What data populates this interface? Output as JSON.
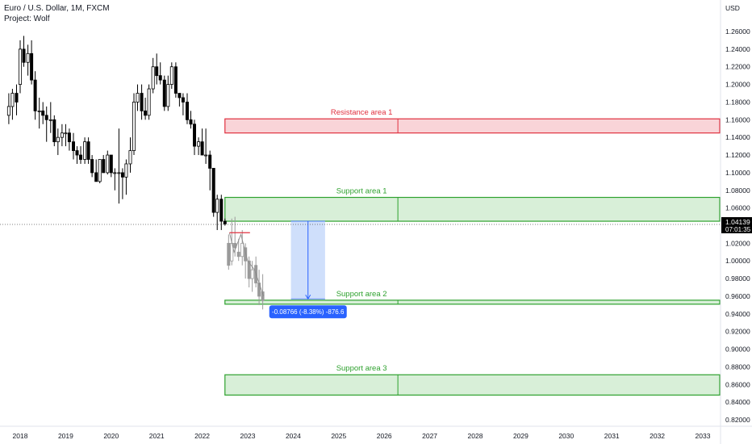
{
  "header": {
    "title": "Euro / U.S. Dollar, 1M, FXCM",
    "project": "Project: Wolf"
  },
  "chart_data": {
    "type": "candlestick",
    "currency_label": "USD",
    "ylim": [
      0.81,
      1.285
    ],
    "y_ticks": [
      0.82,
      0.84,
      0.86,
      0.88,
      0.9,
      0.92,
      0.94,
      0.96,
      0.98,
      1.0,
      1.02,
      1.04,
      1.06,
      1.08,
      1.1,
      1.12,
      1.14,
      1.16,
      1.18,
      1.2,
      1.22,
      1.24,
      1.26
    ],
    "y_tick_labels": [
      "0.82000",
      "0.84000",
      "0.86000",
      "0.88000",
      "0.90000",
      "0.92000",
      "0.94000",
      "0.96000",
      "0.98000",
      "1.00000",
      "1.02000",
      "1.04000",
      "1.06000",
      "1.08000",
      "1.10000",
      "1.12000",
      "1.14000",
      "1.16000",
      "1.18000",
      "1.20000",
      "1.22000",
      "1.24000",
      "1.26000"
    ],
    "x_labels": [
      "2018",
      "2019",
      "2020",
      "2021",
      "2022",
      "2023",
      "2024",
      "2025",
      "2026",
      "2027",
      "2028",
      "2029",
      "2030",
      "2031",
      "2032",
      "2033"
    ],
    "xlim": [
      2017.85,
      2033.55
    ],
    "current_price": "1.04139",
    "current_price_value": 1.04139,
    "countdown": "07:01:35",
    "zones": [
      {
        "label": "Resistance area 1",
        "top": 1.161,
        "bottom": 1.145,
        "start": 2022.5,
        "kind": "resistance"
      },
      {
        "label": "Support area 1",
        "top": 1.072,
        "bottom": 1.045,
        "start": 2022.5,
        "kind": "support"
      },
      {
        "label": "Support area 2",
        "top": 0.9555,
        "bottom": 0.951,
        "start": 2022.5,
        "kind": "support"
      },
      {
        "label": "Support area 3",
        "top": 0.871,
        "bottom": 0.848,
        "start": 2022.5,
        "kind": "support"
      }
    ],
    "measure": {
      "label": "-0.08766 (-8.38%) -876.6",
      "from": 1.045,
      "to": 0.957,
      "start": 2023.95,
      "end": 2024.7
    },
    "colors": {
      "up": "#ffffff",
      "down": "#000000",
      "resistance_fill": "#f9d4d8",
      "resistance_line": "#e0303f",
      "resistance_text": "#e0303f",
      "support_fill": "#d8efd8",
      "support_line": "#2ea12e",
      "support_text": "#2ea12e",
      "measure_fill": "#cfdffb",
      "measure_line": "#2962ff",
      "price_label_bg": "#000000"
    },
    "candles": [
      {
        "t": 2017.75,
        "o": 1.165,
        "h": 1.19,
        "l": 1.155,
        "c": 1.175
      },
      {
        "t": 2017.83,
        "o": 1.175,
        "h": 1.195,
        "l": 1.16,
        "c": 1.19
      },
      {
        "t": 2017.92,
        "o": 1.19,
        "h": 1.2,
        "l": 1.165,
        "c": 1.18
      },
      {
        "t": 2018.0,
        "o": 1.2,
        "h": 1.25,
        "l": 1.19,
        "c": 1.24
      },
      {
        "t": 2018.08,
        "o": 1.24,
        "h": 1.255,
        "l": 1.22,
        "c": 1.225
      },
      {
        "t": 2018.17,
        "o": 1.225,
        "h": 1.245,
        "l": 1.21,
        "c": 1.235
      },
      {
        "t": 2018.25,
        "o": 1.235,
        "h": 1.25,
        "l": 1.2,
        "c": 1.205
      },
      {
        "t": 2018.33,
        "o": 1.205,
        "h": 1.215,
        "l": 1.16,
        "c": 1.17
      },
      {
        "t": 2018.42,
        "o": 1.17,
        "h": 1.185,
        "l": 1.15,
        "c": 1.17
      },
      {
        "t": 2018.5,
        "o": 1.17,
        "h": 1.18,
        "l": 1.155,
        "c": 1.165
      },
      {
        "t": 2018.58,
        "o": 1.165,
        "h": 1.175,
        "l": 1.135,
        "c": 1.16
      },
      {
        "t": 2018.67,
        "o": 1.16,
        "h": 1.18,
        "l": 1.145,
        "c": 1.16
      },
      {
        "t": 2018.75,
        "o": 1.16,
        "h": 1.165,
        "l": 1.13,
        "c": 1.135
      },
      {
        "t": 2018.83,
        "o": 1.135,
        "h": 1.15,
        "l": 1.12,
        "c": 1.14
      },
      {
        "t": 2018.92,
        "o": 1.14,
        "h": 1.155,
        "l": 1.13,
        "c": 1.145
      },
      {
        "t": 2019.0,
        "o": 1.145,
        "h": 1.155,
        "l": 1.13,
        "c": 1.145
      },
      {
        "t": 2019.08,
        "o": 1.145,
        "h": 1.15,
        "l": 1.125,
        "c": 1.135
      },
      {
        "t": 2019.17,
        "o": 1.135,
        "h": 1.145,
        "l": 1.115,
        "c": 1.125
      },
      {
        "t": 2019.25,
        "o": 1.125,
        "h": 1.13,
        "l": 1.11,
        "c": 1.12
      },
      {
        "t": 2019.33,
        "o": 1.12,
        "h": 1.13,
        "l": 1.11,
        "c": 1.115
      },
      {
        "t": 2019.42,
        "o": 1.115,
        "h": 1.14,
        "l": 1.11,
        "c": 1.135
      },
      {
        "t": 2019.5,
        "o": 1.135,
        "h": 1.14,
        "l": 1.11,
        "c": 1.115
      },
      {
        "t": 2019.58,
        "o": 1.115,
        "h": 1.12,
        "l": 1.095,
        "c": 1.1
      },
      {
        "t": 2019.67,
        "o": 1.1,
        "h": 1.115,
        "l": 1.09,
        "c": 1.09
      },
      {
        "t": 2019.75,
        "o": 1.09,
        "h": 1.115,
        "l": 1.088,
        "c": 1.115
      },
      {
        "t": 2019.83,
        "o": 1.115,
        "h": 1.12,
        "l": 1.1,
        "c": 1.1
      },
      {
        "t": 2019.92,
        "o": 1.1,
        "h": 1.125,
        "l": 1.098,
        "c": 1.12
      },
      {
        "t": 2020.0,
        "o": 1.12,
        "h": 1.12,
        "l": 1.095,
        "c": 1.1
      },
      {
        "t": 2020.08,
        "o": 1.1,
        "h": 1.105,
        "l": 1.08,
        "c": 1.1
      },
      {
        "t": 2020.17,
        "o": 1.1,
        "h": 1.15,
        "l": 1.065,
        "c": 1.1
      },
      {
        "t": 2020.25,
        "o": 1.1,
        "h": 1.105,
        "l": 1.07,
        "c": 1.095
      },
      {
        "t": 2020.33,
        "o": 1.095,
        "h": 1.115,
        "l": 1.075,
        "c": 1.11
      },
      {
        "t": 2020.42,
        "o": 1.11,
        "h": 1.14,
        "l": 1.1,
        "c": 1.125
      },
      {
        "t": 2020.5,
        "o": 1.125,
        "h": 1.19,
        "l": 1.12,
        "c": 1.18
      },
      {
        "t": 2020.58,
        "o": 1.18,
        "h": 1.2,
        "l": 1.17,
        "c": 1.19
      },
      {
        "t": 2020.67,
        "o": 1.19,
        "h": 1.2,
        "l": 1.16,
        "c": 1.17
      },
      {
        "t": 2020.75,
        "o": 1.17,
        "h": 1.185,
        "l": 1.16,
        "c": 1.165
      },
      {
        "t": 2020.83,
        "o": 1.165,
        "h": 1.2,
        "l": 1.16,
        "c": 1.195
      },
      {
        "t": 2020.92,
        "o": 1.195,
        "h": 1.23,
        "l": 1.19,
        "c": 1.22
      },
      {
        "t": 2021.0,
        "o": 1.22,
        "h": 1.235,
        "l": 1.2,
        "c": 1.21
      },
      {
        "t": 2021.08,
        "o": 1.21,
        "h": 1.225,
        "l": 1.2,
        "c": 1.205
      },
      {
        "t": 2021.17,
        "o": 1.205,
        "h": 1.21,
        "l": 1.17,
        "c": 1.175
      },
      {
        "t": 2021.25,
        "o": 1.175,
        "h": 1.21,
        "l": 1.17,
        "c": 1.2
      },
      {
        "t": 2021.33,
        "o": 1.2,
        "h": 1.225,
        "l": 1.195,
        "c": 1.22
      },
      {
        "t": 2021.42,
        "o": 1.22,
        "h": 1.225,
        "l": 1.185,
        "c": 1.19
      },
      {
        "t": 2021.5,
        "o": 1.19,
        "h": 1.19,
        "l": 1.175,
        "c": 1.185
      },
      {
        "t": 2021.58,
        "o": 1.185,
        "h": 1.19,
        "l": 1.165,
        "c": 1.18
      },
      {
        "t": 2021.67,
        "o": 1.18,
        "h": 1.19,
        "l": 1.155,
        "c": 1.16
      },
      {
        "t": 2021.75,
        "o": 1.16,
        "h": 1.17,
        "l": 1.15,
        "c": 1.155
      },
      {
        "t": 2021.83,
        "o": 1.155,
        "h": 1.16,
        "l": 1.12,
        "c": 1.13
      },
      {
        "t": 2021.92,
        "o": 1.13,
        "h": 1.14,
        "l": 1.12,
        "c": 1.135
      },
      {
        "t": 2022.0,
        "o": 1.135,
        "h": 1.15,
        "l": 1.12,
        "c": 1.12
      },
      {
        "t": 2022.08,
        "o": 1.12,
        "h": 1.15,
        "l": 1.11,
        "c": 1.12
      },
      {
        "t": 2022.17,
        "o": 1.12,
        "h": 1.125,
        "l": 1.08,
        "c": 1.105
      },
      {
        "t": 2022.25,
        "o": 1.105,
        "h": 1.105,
        "l": 1.05,
        "c": 1.055
      },
      {
        "t": 2022.33,
        "o": 1.055,
        "h": 1.075,
        "l": 1.035,
        "c": 1.07
      },
      {
        "t": 2022.42,
        "o": 1.07,
        "h": 1.075,
        "l": 1.035,
        "c": 1.045
      },
      {
        "t": 2022.5,
        "o": 1.045,
        "h": 1.048,
        "l": 1.04,
        "c": 1.042
      }
    ],
    "projection": {
      "candles": [
        {
          "t": 2022.58,
          "o": 1.02,
          "h": 1.03,
          "l": 0.99,
          "c": 0.995
        },
        {
          "t": 2022.65,
          "o": 1.0,
          "h": 1.048,
          "l": 0.995,
          "c": 1.02
        },
        {
          "t": 2022.72,
          "o": 1.02,
          "h": 1.05,
          "l": 1.005,
          "c": 1.015
        },
        {
          "t": 2022.8,
          "o": 1.01,
          "h": 1.025,
          "l": 1.0,
          "c": 1.005
        },
        {
          "t": 2022.88,
          "o": 1.005,
          "h": 1.035,
          "l": 0.995,
          "c": 1.02
        },
        {
          "t": 2022.95,
          "o": 1.015,
          "h": 1.02,
          "l": 0.98,
          "c": 1.0
        },
        {
          "t": 2023.03,
          "o": 1.0,
          "h": 1.005,
          "l": 0.97,
          "c": 0.98
        },
        {
          "t": 2023.1,
          "o": 0.98,
          "h": 1.0,
          "l": 0.965,
          "c": 0.99
        },
        {
          "t": 2023.18,
          "o": 0.995,
          "h": 1.005,
          "l": 0.97,
          "c": 0.975
        },
        {
          "t": 2023.25,
          "o": 0.975,
          "h": 0.99,
          "l": 0.95,
          "c": 0.96
        },
        {
          "t": 2023.33,
          "o": 0.965,
          "h": 0.985,
          "l": 0.945,
          "c": 0.955
        }
      ],
      "red_line": {
        "value": 1.032,
        "from": 2022.6,
        "to": 2023.05
      },
      "zigzag": [
        [
          2022.6,
          1.032
        ],
        [
          2022.7,
          1.01
        ],
        [
          2022.85,
          1.03
        ],
        [
          2023.0,
          1.0
        ],
        [
          2023.15,
          0.99
        ],
        [
          2023.35,
          0.96
        ]
      ]
    }
  }
}
